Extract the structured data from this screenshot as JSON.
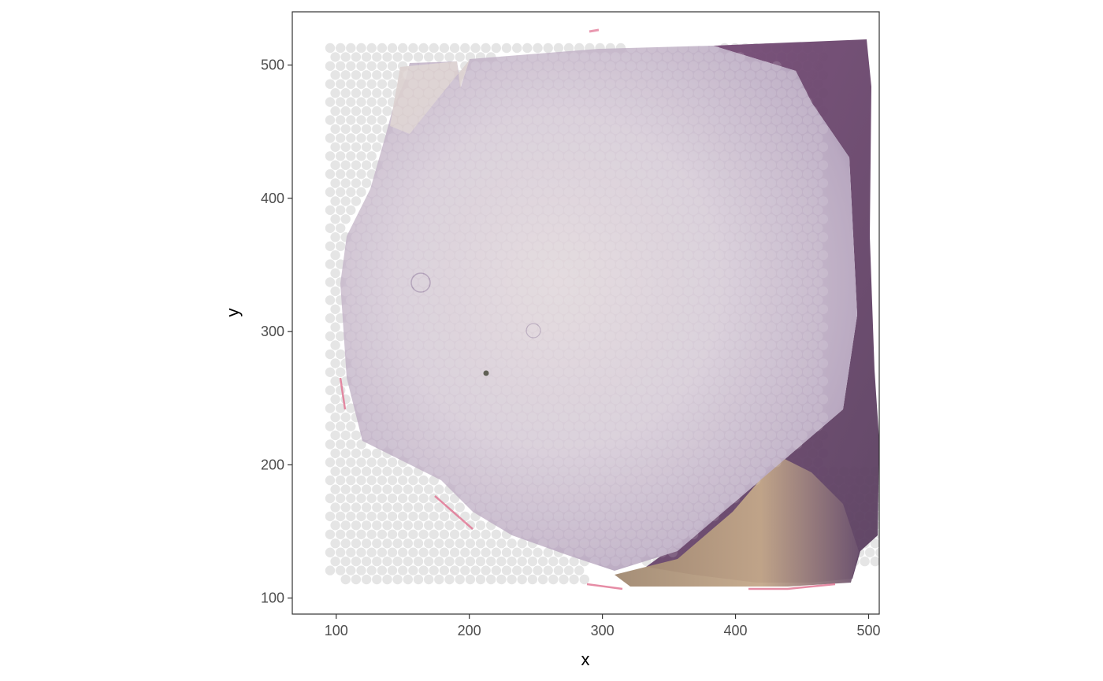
{
  "chart_data": {
    "type": "scatter",
    "title": "",
    "xlabel": "x",
    "ylabel": "y",
    "xlim": [
      67,
      508
    ],
    "ylim": [
      88,
      540
    ],
    "x_ticks": [
      100,
      200,
      300,
      400,
      500
    ],
    "y_ticks": [
      100,
      200,
      300,
      400,
      500
    ],
    "x_tick_labels": [
      "100",
      "200",
      "300",
      "400",
      "500"
    ],
    "y_tick_labels": [
      "100",
      "200",
      "300",
      "400",
      "500"
    ],
    "grid": false,
    "legend": "none",
    "background_image": "H&E stained tissue section",
    "spot_grid": {
      "x_start": 91.5,
      "x_step": 7.8,
      "y_start": 114,
      "y_step": 6.76,
      "rows": 60,
      "cols": 54
    },
    "colors": {
      "spot": "#e0e0e0",
      "panel_border": "#333333",
      "tissue_base": "#d8cfd6",
      "tissue_purple": "#8f7a9c",
      "tissue_edge": "#6b4a6b",
      "tissue_pink": "#c2607a",
      "tissue_tan": "#b89a7a"
    }
  }
}
